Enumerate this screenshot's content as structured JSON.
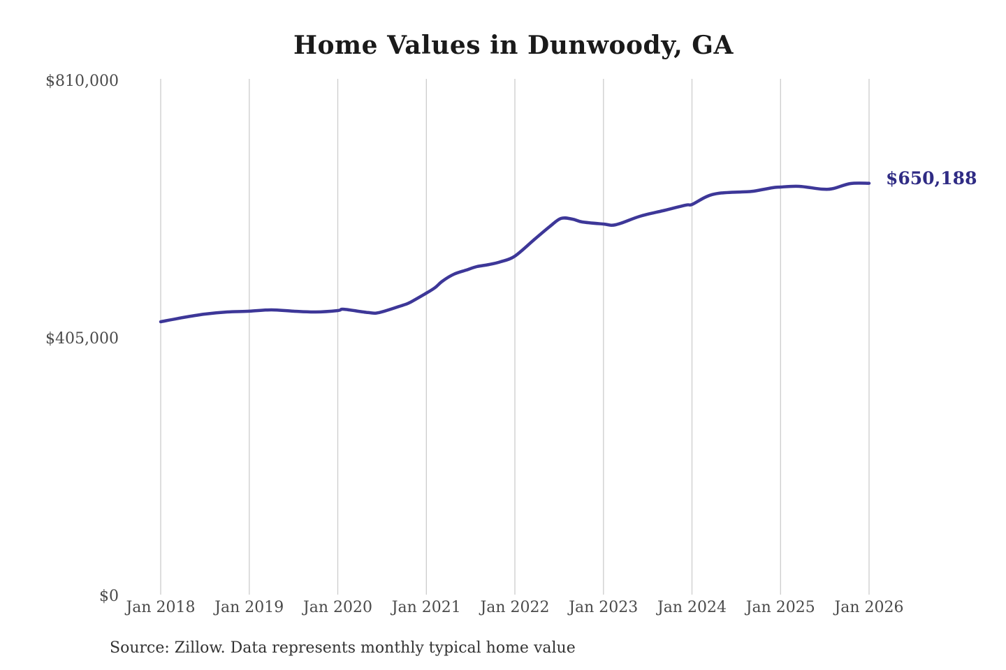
{
  "chart": {
    "title": "Home Values in Dunwoody, GA",
    "end_label": "$650,188",
    "source_note": "Source: Zillow. Data represents monthly typical home value",
    "colors": {
      "line": "#3d3798",
      "end_label": "#2f2b84",
      "grid": "#cccccc",
      "tick_text": "#4a4a4a",
      "title_text": "#1a1a1a",
      "source_text": "#333333",
      "background": "#ffffff"
    }
  },
  "chart_data": {
    "type": "line",
    "title": "Home Values in Dunwoody, GA",
    "xlabel": "",
    "ylabel": "",
    "xlim": [
      2018,
      2026
    ],
    "ylim": [
      0,
      810000
    ],
    "grid": "vertical-only",
    "legend": "none",
    "x_ticks": [
      {
        "year": 2018,
        "label": "Jan 2018"
      },
      {
        "year": 2019,
        "label": "Jan 2019"
      },
      {
        "year": 2020,
        "label": "Jan 2020"
      },
      {
        "year": 2021,
        "label": "Jan 2021"
      },
      {
        "year": 2022,
        "label": "Jan 2022"
      },
      {
        "year": 2023,
        "label": "Jan 2023"
      },
      {
        "year": 2024,
        "label": "Jan 2024"
      },
      {
        "year": 2025,
        "label": "Jan 2025"
      },
      {
        "year": 2026,
        "label": "Jan 2026"
      }
    ],
    "y_ticks": [
      {
        "value": 810000,
        "label": "$810,000"
      },
      {
        "value": 405000,
        "label": "$405,000"
      },
      {
        "value": 0,
        "label": "$0"
      }
    ],
    "series": [
      {
        "name": "Monthly typical home value",
        "final_value": 650188,
        "points": [
          [
            2018.0,
            432400
          ],
          [
            2018.25,
            439000
          ],
          [
            2018.5,
            444500
          ],
          [
            2018.75,
            447800
          ],
          [
            2019.0,
            449000
          ],
          [
            2019.25,
            451100
          ],
          [
            2019.5,
            449000
          ],
          [
            2019.75,
            447800
          ],
          [
            2020.0,
            450000
          ],
          [
            2020.07,
            452100
          ],
          [
            2020.34,
            446900
          ],
          [
            2020.47,
            446900
          ],
          [
            2020.74,
            458700
          ],
          [
            2020.82,
            463100
          ],
          [
            2021.0,
            477400
          ],
          [
            2021.1,
            486200
          ],
          [
            2021.18,
            496100
          ],
          [
            2021.31,
            507100
          ],
          [
            2021.45,
            513700
          ],
          [
            2021.57,
            519100
          ],
          [
            2021.71,
            522400
          ],
          [
            2021.84,
            526800
          ],
          [
            2022.0,
            535600
          ],
          [
            2022.23,
            563000
          ],
          [
            2022.39,
            581700
          ],
          [
            2022.52,
            594900
          ],
          [
            2022.65,
            593800
          ],
          [
            2022.76,
            589400
          ],
          [
            2023.0,
            586100
          ],
          [
            2023.14,
            585000
          ],
          [
            2023.41,
            598200
          ],
          [
            2023.67,
            607000
          ],
          [
            2023.93,
            615800
          ],
          [
            2024.0,
            616800
          ],
          [
            2024.16,
            628900
          ],
          [
            2024.3,
            634400
          ],
          [
            2024.56,
            636600
          ],
          [
            2024.69,
            637700
          ],
          [
            2024.91,
            643200
          ],
          [
            2025.0,
            644300
          ],
          [
            2025.21,
            645400
          ],
          [
            2025.47,
            641000
          ],
          [
            2025.6,
            642100
          ],
          [
            2025.79,
            649800
          ],
          [
            2026.0,
            650188
          ]
        ]
      }
    ],
    "annotations": [
      {
        "text": "$650,188",
        "x": 2026.0,
        "y": 650188
      }
    ]
  }
}
